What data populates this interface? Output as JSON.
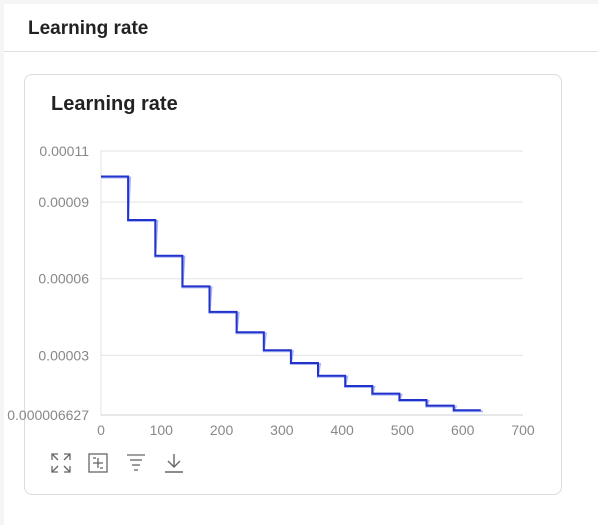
{
  "panel": {
    "title": "Learning rate"
  },
  "card": {
    "title": "Learning rate"
  },
  "toolbar": {
    "icons": [
      "fullscreen-icon",
      "fit-icon",
      "filter-icon",
      "download-icon"
    ]
  },
  "chart_data": {
    "type": "line",
    "title": "Learning rate",
    "xlabel": "",
    "ylabel": "",
    "xlim": [
      0,
      700
    ],
    "ylim": [
      6.627e-06,
      0.00011
    ],
    "x_ticks": [
      0,
      100,
      200,
      300,
      400,
      500,
      600,
      700
    ],
    "x_tick_labels": [
      "0",
      "100",
      "200",
      "300",
      "400",
      "500",
      "600",
      "700"
    ],
    "y_ticks": [
      6.627e-06,
      3e-05,
      6e-05,
      9e-05,
      0.00011
    ],
    "y_tick_labels": [
      "0.000006627",
      "0.00003",
      "0.00006",
      "0.00009",
      "0.00011"
    ],
    "grid": true,
    "colors": {
      "line": "#2233cc",
      "smoothed": "#8899ee"
    },
    "series": [
      {
        "x": [
          0,
          45,
          45,
          90,
          90,
          135,
          135,
          180,
          180,
          225,
          225,
          270,
          270,
          315,
          315,
          360,
          360,
          405,
          405,
          450,
          450,
          495,
          495,
          540,
          540,
          585,
          585,
          630
        ],
        "values": [
          0.0001,
          0.0001,
          8.3e-05,
          8.3e-05,
          6.9e-05,
          6.9e-05,
          5.7e-05,
          5.7e-05,
          4.7e-05,
          4.7e-05,
          3.9e-05,
          3.9e-05,
          3.2e-05,
          3.2e-05,
          2.7e-05,
          2.7e-05,
          2.2e-05,
          2.2e-05,
          1.8e-05,
          1.8e-05,
          1.5e-05,
          1.5e-05,
          1.25e-05,
          1.25e-05,
          1.03e-05,
          1.03e-05,
          8.5e-06,
          8.5e-06
        ]
      }
    ]
  }
}
